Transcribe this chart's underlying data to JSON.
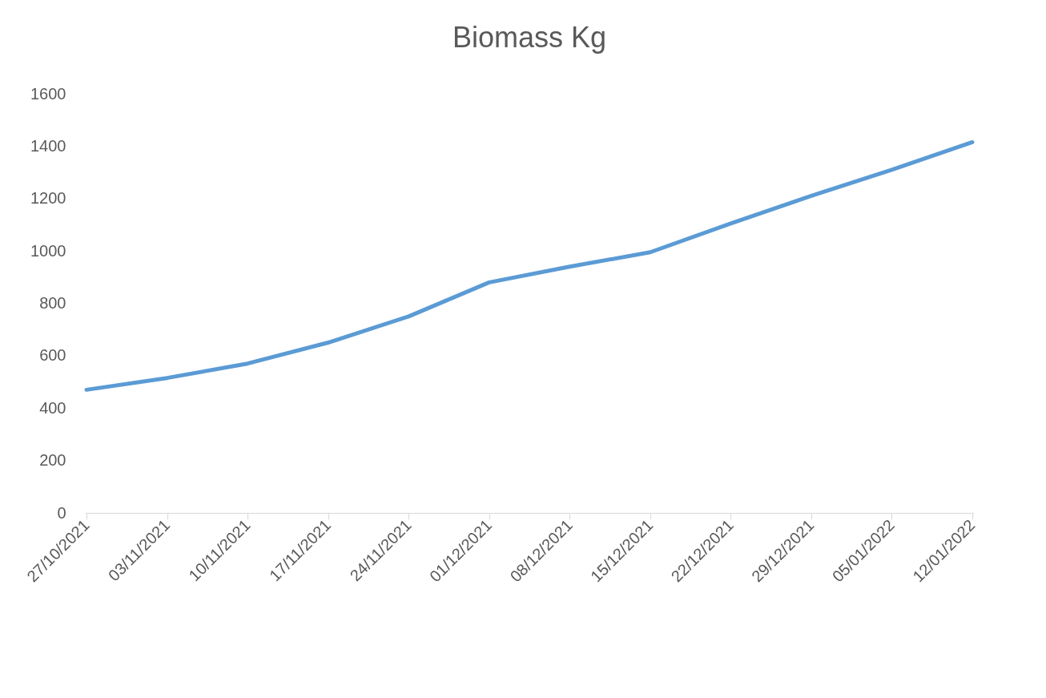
{
  "chart_data": {
    "type": "line",
    "title": "Biomass Kg",
    "categories": [
      "27/10/2021",
      "03/11/2021",
      "10/11/2021",
      "17/11/2021",
      "24/11/2021",
      "01/12/2021",
      "08/12/2021",
      "15/12/2021",
      "22/12/2021",
      "29/12/2021",
      "05/01/2022",
      "12/01/2022"
    ],
    "values": [
      470,
      515,
      570,
      650,
      750,
      880,
      940,
      995,
      1105,
      1210,
      1310,
      1415
    ],
    "color": "#5b9bd5",
    "ylim": [
      0,
      1600
    ],
    "yticks": [
      0,
      200,
      400,
      600,
      800,
      1000,
      1200,
      1400,
      1600
    ]
  }
}
